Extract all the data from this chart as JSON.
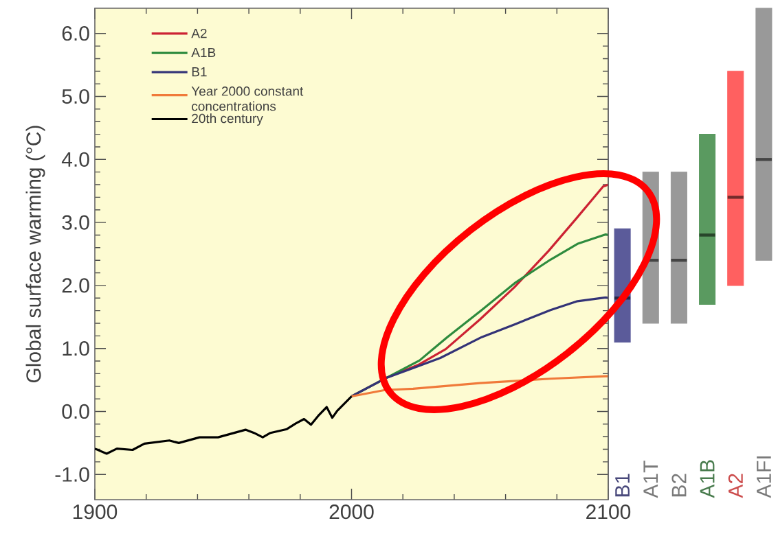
{
  "chart_data": [
    {
      "type": "line",
      "ylabel": "Global surface warming (°C)",
      "xlim": [
        1900,
        2100
      ],
      "ylim": [
        -1.4,
        6.4
      ],
      "xticks": [
        1900,
        2000,
        2100
      ],
      "yticks": [
        {
          "value": -1,
          "label": "-1.0"
        },
        {
          "value": 0,
          "label": "0.0"
        },
        {
          "value": 1,
          "label": "1.0"
        },
        {
          "value": 2,
          "label": "2.0"
        },
        {
          "value": 3,
          "label": "3.0"
        },
        {
          "value": 4,
          "label": "4.0"
        },
        {
          "value": 5,
          "label": "5.0"
        },
        {
          "value": 6,
          "label": "6.0"
        }
      ],
      "legend": "top left",
      "series": [
        {
          "name": "A2",
          "color": "#cc2233",
          "x": [
            2000,
            2013.4,
            2026,
            2036.7,
            2050,
            2063.4,
            2076.8,
            2087.5,
            2098,
            2100
          ],
          "values": [
            0.24,
            0.53,
            0.74,
            0.99,
            1.46,
            1.97,
            2.55,
            3.06,
            3.57,
            3.6
          ]
        },
        {
          "name": "A1B",
          "color": "#2e8b3e",
          "x": [
            2000,
            2013.4,
            2026.5,
            2037.3,
            2050.7,
            2064,
            2077.5,
            2088,
            2099,
            2100
          ],
          "values": [
            0.24,
            0.53,
            0.81,
            1.18,
            1.61,
            2.05,
            2.41,
            2.66,
            2.81,
            2.8
          ]
        },
        {
          "name": "B1",
          "color": "#333377",
          "x": [
            2000,
            2013.4,
            2022,
            2034.6,
            2050.7,
            2064,
            2077.5,
            2088,
            2099,
            2100
          ],
          "values": [
            0.24,
            0.53,
            0.66,
            0.85,
            1.18,
            1.39,
            1.61,
            1.75,
            1.81,
            1.8
          ]
        },
        {
          "name": "Year 2000 constant concentrations",
          "color": "#f07a3a",
          "x": [
            2000,
            2013,
            2024,
            2050,
            2077.5,
            2099,
            2100
          ],
          "values": [
            0.24,
            0.34,
            0.36,
            0.45,
            0.52,
            0.56,
            0.56
          ]
        },
        {
          "name": "20th century",
          "color": "#000000",
          "x": [
            1900,
            1904.6,
            1908.6,
            1914.7,
            1919.3,
            1929,
            1932.7,
            1940.8,
            1948,
            1958.7,
            1962,
            1965.4,
            1968.4,
            1974.8,
            1978.3,
            1981.5,
            1984.2,
            1987,
            1990.3,
            1992.5,
            1994.4,
            2000
          ],
          "values": [
            -0.59,
            -0.67,
            -0.59,
            -0.61,
            -0.51,
            -0.46,
            -0.5,
            -0.41,
            -0.41,
            -0.29,
            -0.34,
            -0.41,
            -0.34,
            -0.28,
            -0.19,
            -0.12,
            -0.21,
            -0.07,
            0.07,
            -0.1,
            0.01,
            0.24
          ]
        }
      ]
    },
    {
      "type": "box",
      "categories": [
        "B1",
        "A1T",
        "B2",
        "A1B",
        "A2",
        "A1FI"
      ],
      "ylim": [
        -1.4,
        6.4
      ],
      "tick_labels": "x",
      "colors": [
        "#5b5b9a",
        "#999999",
        "#999999",
        "#5a9a60",
        "#ff6060",
        "#999999"
      ],
      "boxes": [
        {
          "low": 1.1,
          "q1": 1.1,
          "median": 1.8,
          "q3": 2.9,
          "high": 2.9
        },
        {
          "low": 1.4,
          "q1": 1.4,
          "median": 2.4,
          "q3": 3.8,
          "high": 3.8
        },
        {
          "low": 1.4,
          "q1": 1.4,
          "median": 2.4,
          "q3": 3.8,
          "high": 3.8
        },
        {
          "low": 1.7,
          "q1": 1.7,
          "median": 2.8,
          "q3": 4.4,
          "high": 4.4
        },
        {
          "low": 2.0,
          "q1": 2.0,
          "median": 3.4,
          "q3": 5.4,
          "high": 5.4
        },
        {
          "low": 2.4,
          "q1": 2.4,
          "median": 4.0,
          "q3": 6.4,
          "high": 6.4
        }
      ]
    }
  ]
}
